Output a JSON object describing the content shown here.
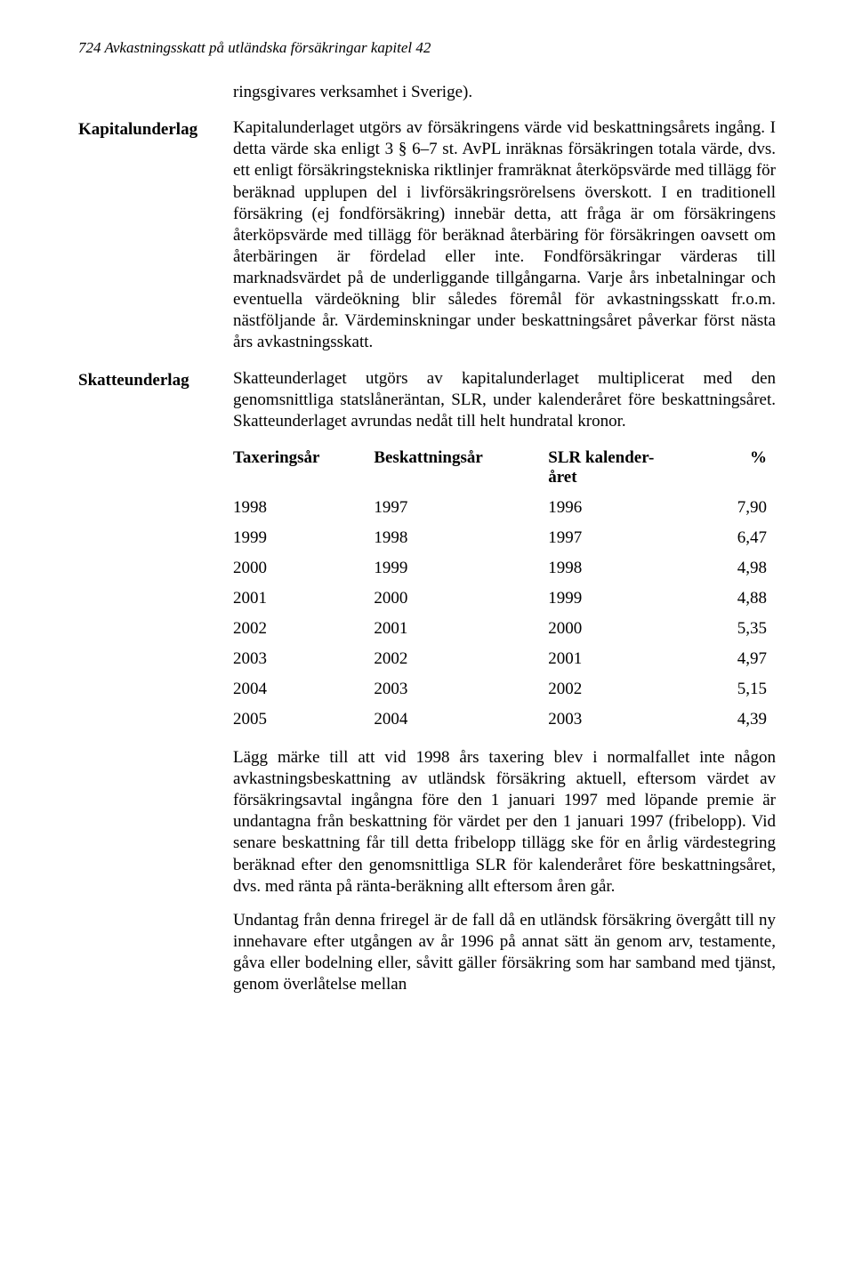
{
  "running_head": "724 Avkastningsskatt på utländska försäkringar kapitel 42",
  "lead_para": "ringsgivares verksamhet i Sverige).",
  "sections": {
    "kapitalunderlag": {
      "label": "Kapitalunderlag",
      "text": "Kapitalunderlaget utgörs av försäkringens värde vid beskattningsårets ingång. I detta värde ska enligt 3 § 6–7 st. AvPL inräknas försäkringen totala värde, dvs. ett enligt försäkringstekniska riktlinjer framräknat återköpsvärde med tillägg för beräknad upplupen del i livförsäkringsrörelsens överskott. I en traditionell försäkring (ej fondförsäkring) innebär detta, att fråga är om försäkringens återköpsvärde med tillägg för beräknad återbäring för försäkringen oavsett om återbäringen är fördelad eller inte. Fondförsäkringar värderas till marknadsvärdet på de underliggande tillgångarna. Varje års inbetalningar och eventuella värdeökning blir således föremål för avkastningsskatt fr.o.m. nästföljande år. Värdeminskningar under beskattningsåret påverkar först nästa års avkastningsskatt."
    },
    "skatteunderlag": {
      "label": "Skatteunderlag",
      "text": "Skatteunderlaget utgörs av kapitalunderlaget multiplicerat med den genomsnittliga statslåneräntan, SLR, under kalenderåret före beskattningsåret. Skatteunderlaget avrundas nedåt till helt hundratal kronor."
    }
  },
  "table": {
    "columns": [
      "Taxeringsår",
      "Beskattningsår",
      "SLR kalender-\nåret",
      "%"
    ],
    "rows": [
      [
        "1998",
        "1997",
        "1996",
        "7,90"
      ],
      [
        "1999",
        "1998",
        "1997",
        "6,47"
      ],
      [
        "2000",
        "1999",
        "1998",
        "4,98"
      ],
      [
        "2001",
        "2000",
        "1999",
        "4,88"
      ],
      [
        "2002",
        "2001",
        "2000",
        "5,35"
      ],
      [
        "2003",
        "2002",
        "2001",
        "4,97"
      ],
      [
        "2004",
        "2003",
        "2002",
        "5,15"
      ],
      [
        "2005",
        "2004",
        "2003",
        "4,39"
      ]
    ]
  },
  "trailing_paras": [
    "Lägg märke till att vid 1998 års taxering blev i normalfallet inte någon avkastningsbeskattning av utländsk försäkring aktuell, eftersom värdet av försäkringsavtal ingångna före den 1 januari 1997 med löpande premie är undantagna från beskattning för värdet per den 1 januari 1997 (fribelopp). Vid senare beskattning får till detta fribelopp tillägg ske för en årlig värdestegring beräknad efter den genomsnittliga SLR för kalenderåret före beskattningsåret, dvs. med ränta på ränta-beräkning allt eftersom åren går.",
    "Undantag från denna friregel är de fall då en utländsk försäkring övergått till ny innehavare efter utgången av år 1996 på annat sätt än genom arv, testamente, gåva eller bodelning eller, såvitt gäller försäkring som har samband med tjänst, genom överlåtelse mellan"
  ]
}
